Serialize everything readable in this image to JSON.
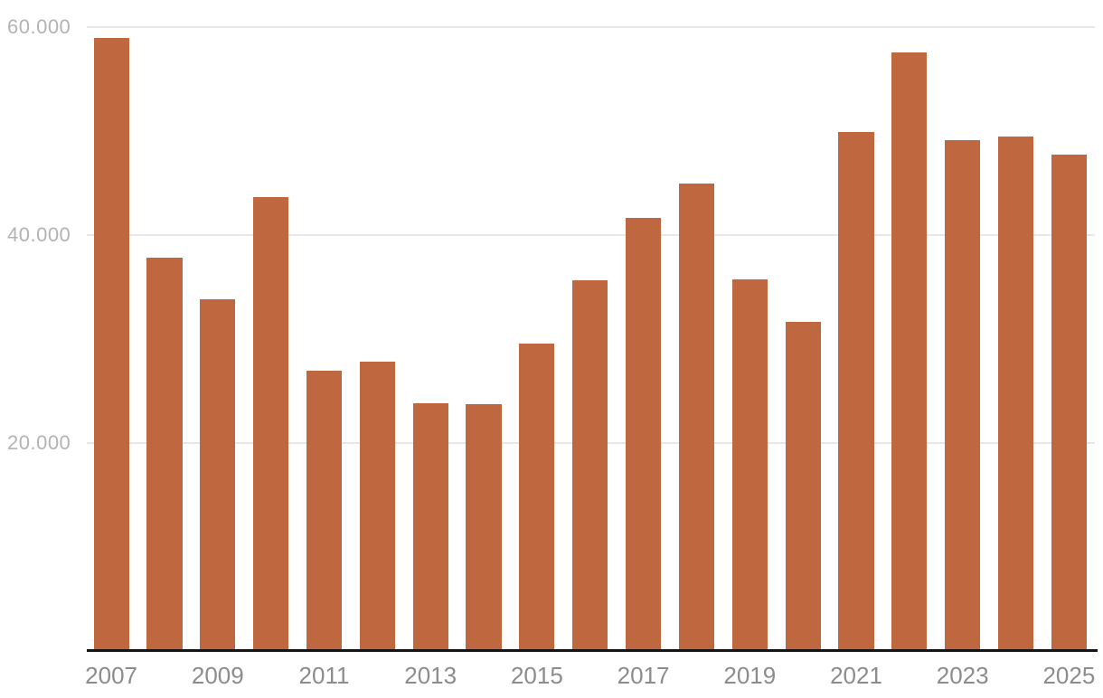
{
  "chart_data": {
    "type": "bar",
    "title": "",
    "subtitle": "",
    "xlabel": "",
    "ylabel": "",
    "categories": [
      2007,
      2008,
      2009,
      2010,
      2011,
      2012,
      2013,
      2014,
      2015,
      2016,
      2017,
      2018,
      2019,
      2020,
      2021,
      2022,
      2023,
      2024,
      2025
    ],
    "values": [
      58900,
      37800,
      33800,
      43600,
      26900,
      27800,
      23800,
      23700,
      29500,
      35600,
      41600,
      44900,
      35700,
      31600,
      49900,
      57500,
      49100,
      49400,
      47700
    ],
    "ylim": [
      0,
      60000
    ],
    "grid": "horizontal",
    "legend_position": "none",
    "yticks": [
      {
        "value": 20000,
        "label": "20.000"
      },
      {
        "value": 40000,
        "label": "40.000"
      },
      {
        "value": 60000,
        "label": "60.000"
      }
    ],
    "xtick_labels": [
      "2007",
      "2009",
      "2011",
      "2013",
      "2015",
      "2017",
      "2019",
      "2021",
      "2023",
      "2025"
    ],
    "xtick_step": 2,
    "number_format": "thousands-dot-separator"
  },
  "colors": {
    "bar": "#bf6840",
    "gridline": "#e7e7e7",
    "axis_line": "#141414",
    "ytick_label": "#b3b3b3",
    "xtick_label": "#8c8c8c",
    "background": "#ffffff"
  }
}
